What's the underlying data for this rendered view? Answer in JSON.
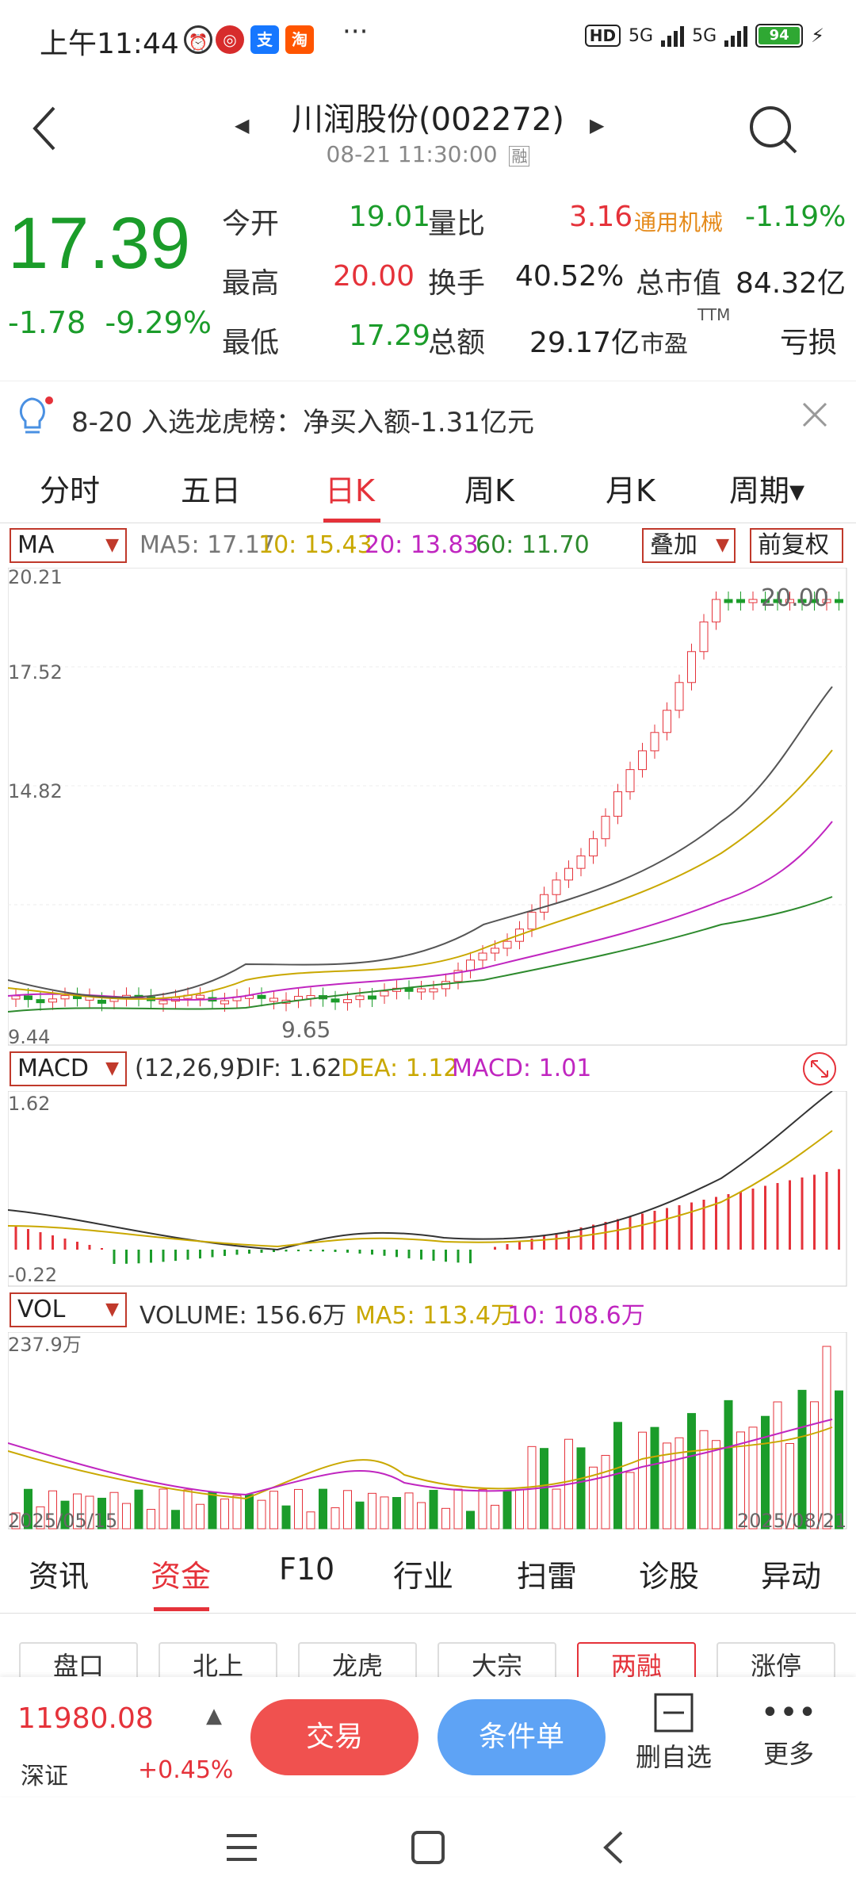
{
  "status_bar": {
    "time": "上午11:44",
    "signal1": "5G",
    "signal2": "5G",
    "battery": "94",
    "hd": "HD"
  },
  "header": {
    "title": "川润股份(002272)",
    "timestamp": "08-21 11:30:00",
    "badge": "融"
  },
  "quote": {
    "price": "17.39",
    "change": "-1.78",
    "change_pct": "-9.29%",
    "rows": [
      {
        "l1": "今开",
        "v1": "19.01",
        "l2": "量比",
        "v2": "3.16",
        "l3": "通用机械",
        "v3": "-1.19%"
      },
      {
        "l1": "最高",
        "v1": "20.00",
        "l2": "换手",
        "v2": "40.52%",
        "l3": "总市值",
        "v3": "84.32亿"
      },
      {
        "l1": "最低",
        "v1": "17.29",
        "l2": "总额",
        "v2": "29.17亿",
        "l3": "市盈",
        "l3sup": "TTM",
        "v3": "亏损"
      }
    ]
  },
  "banner": {
    "text": "8-20 入选龙虎榜：净买入额-1.31亿元"
  },
  "period_tabs": [
    "分时",
    "五日",
    "日K",
    "周K",
    "月K",
    "周期▾"
  ],
  "active_period": "日K",
  "ma_bar": {
    "selector": "MA",
    "ma5": "MA5: 17.17",
    "ma10": "10: 15.43",
    "ma20": "20: 13.83",
    "ma60": "60: 11.70",
    "overlay": "叠加",
    "adjust": "前复权"
  },
  "kchart": {
    "y_top": "20.21",
    "y_mid": "17.52",
    "y_low": "14.82",
    "y_bottom": "9.44",
    "high_label": "20.00",
    "low_label": "9.65"
  },
  "macd_bar": {
    "selector": "MACD",
    "params": "(12,26,9)",
    "dif": "DIF: 1.62",
    "dea": "DEA: 1.12",
    "macd": "MACD: 1.01",
    "y_top": "1.62",
    "y_bottom": "-0.22"
  },
  "vol_bar": {
    "selector": "VOL",
    "volume": "VOLUME: 156.6万",
    "ma5": "MA5: 113.4万",
    "ma10": "10: 108.6万",
    "y_top": "237.9万",
    "date_start": "2025/05/15",
    "date_end": "2025/08/21"
  },
  "bottom_tabs": [
    "资讯",
    "资金",
    "F10",
    "行业",
    "扫雷",
    "诊股",
    "异动"
  ],
  "active_bottom": "资金",
  "chips": [
    "盘口",
    "北上",
    "龙虎",
    "大宗",
    "两融",
    "涨停"
  ],
  "active_chip": "两融",
  "footer": {
    "index_value": "11980.08",
    "index_name": "深证",
    "index_change": "+0.45%",
    "trade": "交易",
    "condition": "条件单",
    "remove_watch": "删自选",
    "more": "更多"
  },
  "colors": {
    "up": "#e5323a",
    "down": "#1b9c2a",
    "accent": "#e5323a"
  }
}
